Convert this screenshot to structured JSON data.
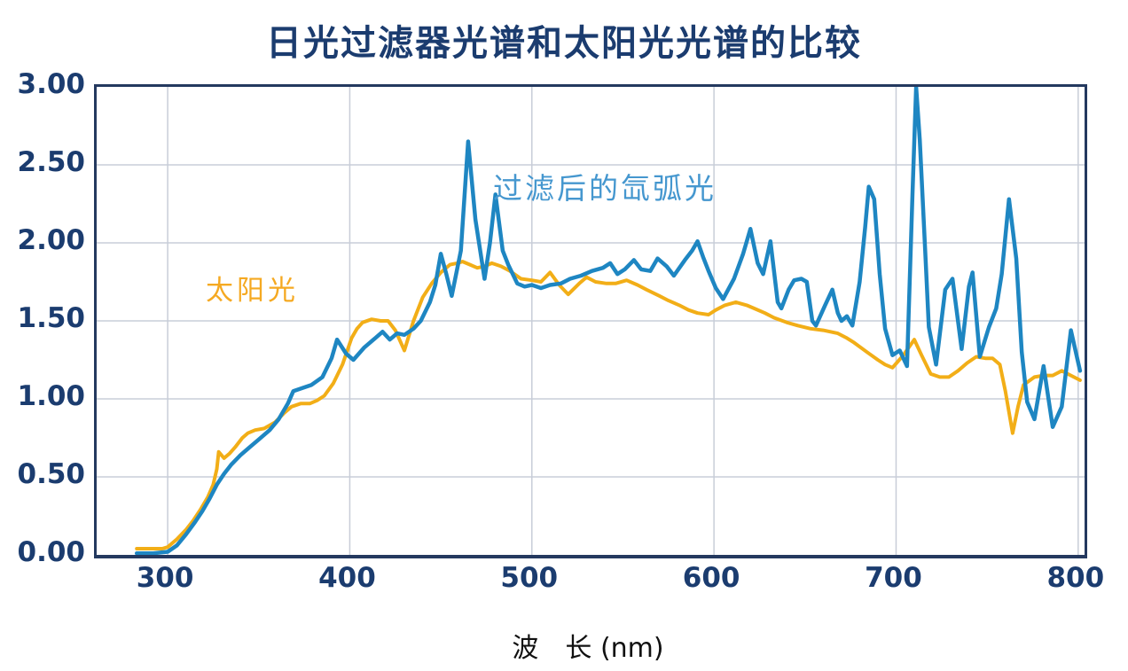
{
  "chart_data": {
    "type": "line",
    "title": "日光过滤器光谱和太阳光光谱的比较",
    "xlabel": "波　长 (nm)",
    "ylabel": "",
    "xlim": [
      261,
      803.5
    ],
    "ylim": [
      0,
      3.0
    ],
    "grid": true,
    "x_ticks": [
      300,
      400,
      500,
      600,
      700,
      800
    ],
    "y_ticks": [
      {
        "value": 0.0,
        "label": "0.00"
      },
      {
        "value": 0.5,
        "label": "0.50"
      },
      {
        "value": 1.0,
        "label": "1.00"
      },
      {
        "value": 1.5,
        "label": "1.50"
      },
      {
        "value": 2.0,
        "label": "2.00"
      },
      {
        "value": 2.5,
        "label": "2.50"
      },
      {
        "value": 3.0,
        "label": "3.00"
      }
    ],
    "colors": {
      "title": "#1b3c6f",
      "tick_labels": "#1b3c6f",
      "frame": "#24395f",
      "gridline": "#c8cdd8",
      "sunlight": "#f2ae17",
      "xenon": "#1e86c2",
      "sunlight_label": "#f5a922",
      "xenon_label": "#4597cf"
    },
    "series": [
      {
        "name": "太阳光",
        "color": "#f2ae17",
        "stroke_width": 4,
        "points": [
          [
            283,
            0.04
          ],
          [
            292,
            0.04
          ],
          [
            297,
            0.04
          ],
          [
            300,
            0.05
          ],
          [
            305,
            0.1
          ],
          [
            310,
            0.16
          ],
          [
            314,
            0.22
          ],
          [
            318,
            0.29
          ],
          [
            322,
            0.37
          ],
          [
            325,
            0.45
          ],
          [
            327,
            0.55
          ],
          [
            328,
            0.66
          ],
          [
            331,
            0.62
          ],
          [
            334,
            0.65
          ],
          [
            337,
            0.69
          ],
          [
            341,
            0.75
          ],
          [
            344,
            0.78
          ],
          [
            348,
            0.8
          ],
          [
            353,
            0.81
          ],
          [
            359,
            0.85
          ],
          [
            364,
            0.91
          ],
          [
            368,
            0.95
          ],
          [
            373,
            0.97
          ],
          [
            378,
            0.97
          ],
          [
            382,
            0.99
          ],
          [
            386,
            1.02
          ],
          [
            391,
            1.1
          ],
          [
            396,
            1.22
          ],
          [
            401,
            1.39
          ],
          [
            404,
            1.45
          ],
          [
            407,
            1.49
          ],
          [
            412,
            1.51
          ],
          [
            417,
            1.5
          ],
          [
            421,
            1.5
          ],
          [
            425,
            1.44
          ],
          [
            430,
            1.31
          ],
          [
            435,
            1.5
          ],
          [
            440,
            1.65
          ],
          [
            445,
            1.74
          ],
          [
            450,
            1.81
          ],
          [
            455,
            1.86
          ],
          [
            459,
            1.87
          ],
          [
            462,
            1.88
          ],
          [
            466,
            1.86
          ],
          [
            470,
            1.84
          ],
          [
            474,
            1.85
          ],
          [
            478,
            1.87
          ],
          [
            483,
            1.85
          ],
          [
            488,
            1.82
          ],
          [
            494,
            1.77
          ],
          [
            500,
            1.76
          ],
          [
            505,
            1.75
          ],
          [
            510,
            1.81
          ],
          [
            515,
            1.73
          ],
          [
            520,
            1.67
          ],
          [
            526,
            1.74
          ],
          [
            530,
            1.78
          ],
          [
            535,
            1.75
          ],
          [
            541,
            1.74
          ],
          [
            546,
            1.74
          ],
          [
            552,
            1.76
          ],
          [
            558,
            1.73
          ],
          [
            563,
            1.7
          ],
          [
            570,
            1.66
          ],
          [
            575,
            1.63
          ],
          [
            581,
            1.6
          ],
          [
            586,
            1.57
          ],
          [
            591,
            1.55
          ],
          [
            597,
            1.54
          ],
          [
            601,
            1.57
          ],
          [
            606,
            1.6
          ],
          [
            612,
            1.62
          ],
          [
            618,
            1.6
          ],
          [
            622,
            1.58
          ],
          [
            628,
            1.55
          ],
          [
            633,
            1.52
          ],
          [
            640,
            1.49
          ],
          [
            646,
            1.47
          ],
          [
            653,
            1.45
          ],
          [
            660,
            1.44
          ],
          [
            668,
            1.42
          ],
          [
            673,
            1.39
          ],
          [
            677,
            1.36
          ],
          [
            684,
            1.3
          ],
          [
            690,
            1.25
          ],
          [
            694,
            1.22
          ],
          [
            698,
            1.2
          ],
          [
            704,
            1.28
          ],
          [
            710,
            1.38
          ],
          [
            714,
            1.28
          ],
          [
            719,
            1.16
          ],
          [
            724,
            1.14
          ],
          [
            729,
            1.14
          ],
          [
            734,
            1.18
          ],
          [
            739,
            1.23
          ],
          [
            744,
            1.27
          ],
          [
            749,
            1.26
          ],
          [
            753,
            1.26
          ],
          [
            757,
            1.22
          ],
          [
            760,
            1.05
          ],
          [
            764,
            0.78
          ],
          [
            767,
            0.95
          ],
          [
            770,
            1.09
          ],
          [
            776,
            1.14
          ],
          [
            781,
            1.15
          ],
          [
            786,
            1.15
          ],
          [
            791,
            1.18
          ],
          [
            796,
            1.15
          ],
          [
            801,
            1.12
          ]
        ]
      },
      {
        "name": "过滤后的氙弧光",
        "color": "#1e86c2",
        "stroke_width": 4.5,
        "points": [
          [
            283,
            0.01
          ],
          [
            292,
            0.01
          ],
          [
            300,
            0.02
          ],
          [
            305,
            0.06
          ],
          [
            310,
            0.13
          ],
          [
            315,
            0.21
          ],
          [
            319,
            0.28
          ],
          [
            323,
            0.36
          ],
          [
            327,
            0.45
          ],
          [
            331,
            0.52
          ],
          [
            335,
            0.58
          ],
          [
            340,
            0.64
          ],
          [
            345,
            0.69
          ],
          [
            350,
            0.74
          ],
          [
            356,
            0.8
          ],
          [
            361,
            0.87
          ],
          [
            366,
            0.97
          ],
          [
            369,
            1.05
          ],
          [
            374,
            1.07
          ],
          [
            379,
            1.09
          ],
          [
            385,
            1.14
          ],
          [
            390,
            1.26
          ],
          [
            393,
            1.38
          ],
          [
            398,
            1.29
          ],
          [
            402,
            1.25
          ],
          [
            408,
            1.33
          ],
          [
            414,
            1.39
          ],
          [
            418,
            1.43
          ],
          [
            422,
            1.38
          ],
          [
            426,
            1.42
          ],
          [
            430,
            1.41
          ],
          [
            435,
            1.45
          ],
          [
            439,
            1.5
          ],
          [
            444,
            1.62
          ],
          [
            447,
            1.73
          ],
          [
            450,
            1.93
          ],
          [
            453,
            1.8
          ],
          [
            456,
            1.66
          ],
          [
            461,
            1.95
          ],
          [
            465,
            2.65
          ],
          [
            469,
            2.15
          ],
          [
            474,
            1.77
          ],
          [
            477,
            2.0
          ],
          [
            480,
            2.31
          ],
          [
            484,
            1.95
          ],
          [
            487,
            1.86
          ],
          [
            492,
            1.74
          ],
          [
            496,
            1.72
          ],
          [
            500,
            1.73
          ],
          [
            505,
            1.71
          ],
          [
            510,
            1.73
          ],
          [
            516,
            1.74
          ],
          [
            521,
            1.77
          ],
          [
            527,
            1.79
          ],
          [
            533,
            1.82
          ],
          [
            539,
            1.84
          ],
          [
            543,
            1.87
          ],
          [
            547,
            1.8
          ],
          [
            551,
            1.83
          ],
          [
            556,
            1.89
          ],
          [
            560,
            1.83
          ],
          [
            565,
            1.82
          ],
          [
            569,
            1.9
          ],
          [
            574,
            1.85
          ],
          [
            578,
            1.79
          ],
          [
            584,
            1.89
          ],
          [
            588,
            1.95
          ],
          [
            591,
            2.01
          ],
          [
            594,
            1.91
          ],
          [
            597,
            1.82
          ],
          [
            601,
            1.71
          ],
          [
            605,
            1.64
          ],
          [
            611,
            1.77
          ],
          [
            616,
            1.93
          ],
          [
            620,
            2.09
          ],
          [
            624,
            1.87
          ],
          [
            627,
            1.8
          ],
          [
            631,
            2.01
          ],
          [
            635,
            1.62
          ],
          [
            637,
            1.58
          ],
          [
            641,
            1.7
          ],
          [
            644,
            1.76
          ],
          [
            648,
            1.77
          ],
          [
            651,
            1.75
          ],
          [
            654,
            1.5
          ],
          [
            656,
            1.47
          ],
          [
            661,
            1.6
          ],
          [
            665,
            1.7
          ],
          [
            668,
            1.55
          ],
          [
            670,
            1.5
          ],
          [
            673,
            1.53
          ],
          [
            676,
            1.47
          ],
          [
            680,
            1.75
          ],
          [
            683,
            2.1
          ],
          [
            685,
            2.36
          ],
          [
            688,
            2.28
          ],
          [
            691,
            1.8
          ],
          [
            694,
            1.45
          ],
          [
            698,
            1.28
          ],
          [
            702,
            1.31
          ],
          [
            706,
            1.21
          ],
          [
            709,
            2.3
          ],
          [
            711,
            3.0
          ],
          [
            713,
            2.66
          ],
          [
            716,
            1.95
          ],
          [
            718,
            1.46
          ],
          [
            722,
            1.22
          ],
          [
            727,
            1.7
          ],
          [
            731,
            1.77
          ],
          [
            736,
            1.32
          ],
          [
            740,
            1.72
          ],
          [
            742,
            1.81
          ],
          [
            746,
            1.27
          ],
          [
            751,
            1.46
          ],
          [
            755,
            1.58
          ],
          [
            758,
            1.8
          ],
          [
            762,
            2.28
          ],
          [
            766,
            1.9
          ],
          [
            769,
            1.3
          ],
          [
            772,
            0.98
          ],
          [
            776,
            0.87
          ],
          [
            781,
            1.21
          ],
          [
            786,
            0.82
          ],
          [
            791,
            0.95
          ],
          [
            796,
            1.44
          ],
          [
            801,
            1.18
          ]
        ]
      }
    ]
  }
}
